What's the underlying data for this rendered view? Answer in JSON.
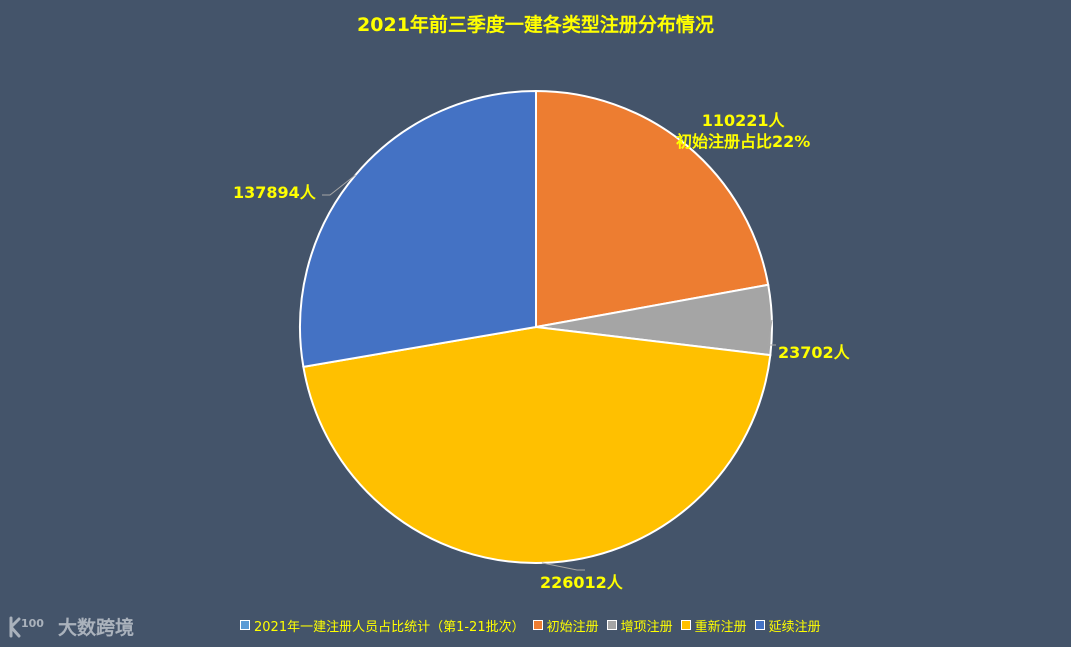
{
  "chart_data": {
    "type": "pie",
    "title": "2021年前三季度一建各类型注册分布情况",
    "slices": [
      {
        "name": "初始注册",
        "value": 110221,
        "label": "110221人",
        "sublabel": "初始注册占比22%",
        "color": "#ed7d31"
      },
      {
        "name": "增项注册",
        "value": 23702,
        "label": "23702人",
        "sublabel": "",
        "color": "#a5a5a5"
      },
      {
        "name": "重新注册",
        "value": 226012,
        "label": "226012人",
        "sublabel": "",
        "color": "#ffc000"
      },
      {
        "name": "延续注册",
        "value": 137894,
        "label": "137894人",
        "sublabel": "",
        "color": "#4472c4"
      }
    ],
    "legend": {
      "position": "bottom",
      "entries": [
        {
          "label": "2021年一建注册人员占比统计（第1-21批次）",
          "color": "#5b9bd5"
        },
        {
          "label": "初始注册",
          "color": "#ed7d31"
        },
        {
          "label": "增项注册",
          "color": "#a5a5a5"
        },
        {
          "label": "重新注册",
          "color": "#ffc000"
        },
        {
          "label": "延续注册",
          "color": "#4472c4"
        }
      ]
    }
  },
  "watermark": {
    "text": "大数跨境"
  },
  "colors": {
    "background": "#44546a",
    "label_text": "#ffff00",
    "slice_border": "#ffffff"
  }
}
